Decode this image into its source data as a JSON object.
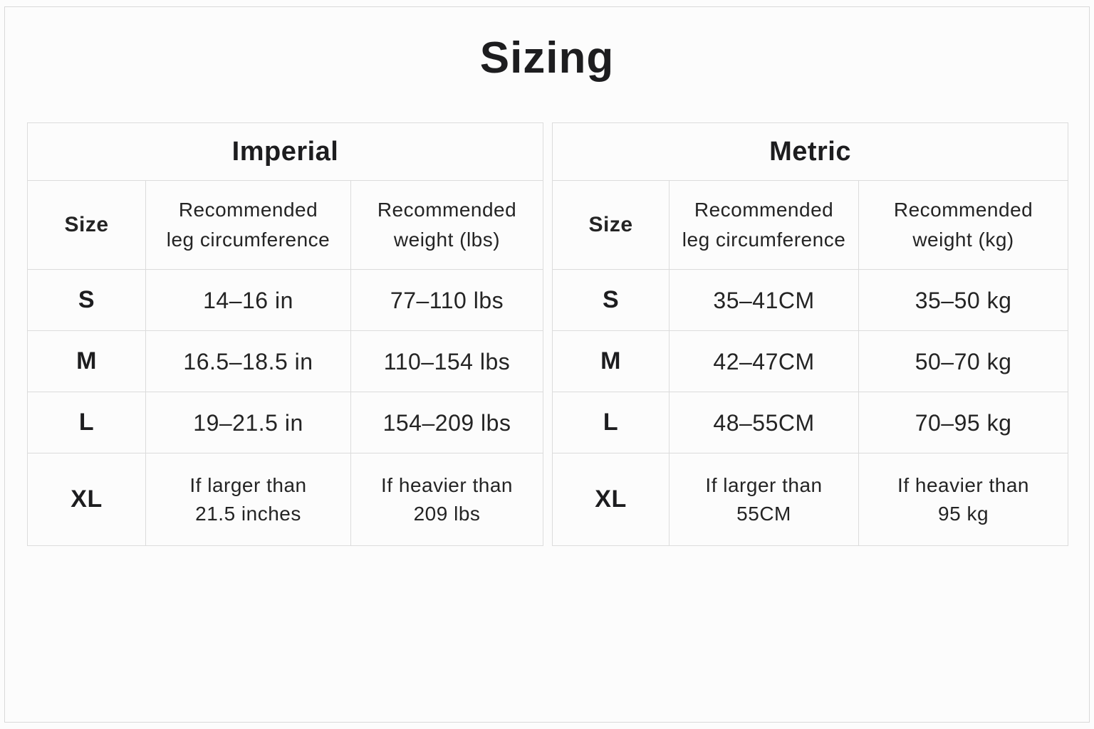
{
  "page": {
    "title": "Sizing"
  },
  "colors": {
    "text": "#222222",
    "heading": "#1d1d1f",
    "table_border": "#dcdcdc",
    "page_border": "#d9d9d9",
    "background": "#fcfcfc"
  },
  "tables": [
    {
      "title": "Imperial",
      "columns": [
        "Size",
        "Recommended\nleg circumference",
        "Recommended\nweight (lbs)"
      ],
      "rows": [
        [
          "S",
          "14–16 in",
          "77–110 lbs"
        ],
        [
          "M",
          "16.5–18.5 in",
          "110–154 lbs"
        ],
        [
          "L",
          "19–21.5 in",
          "154–209 lbs"
        ],
        [
          "XL",
          "If larger than\n21.5 inches",
          "If heavier than\n209 lbs"
        ]
      ]
    },
    {
      "title": "Metric",
      "columns": [
        "Size",
        "Recommended\nleg circumference",
        "Recommended\nweight (kg)"
      ],
      "rows": [
        [
          "S",
          "35–41CM",
          "35–50 kg"
        ],
        [
          "M",
          "42–47CM",
          "50–70 kg"
        ],
        [
          "L",
          "48–55CM",
          "70–95 kg"
        ],
        [
          "XL",
          "If larger than\n55CM",
          "If heavier than\n95 kg"
        ]
      ]
    }
  ]
}
